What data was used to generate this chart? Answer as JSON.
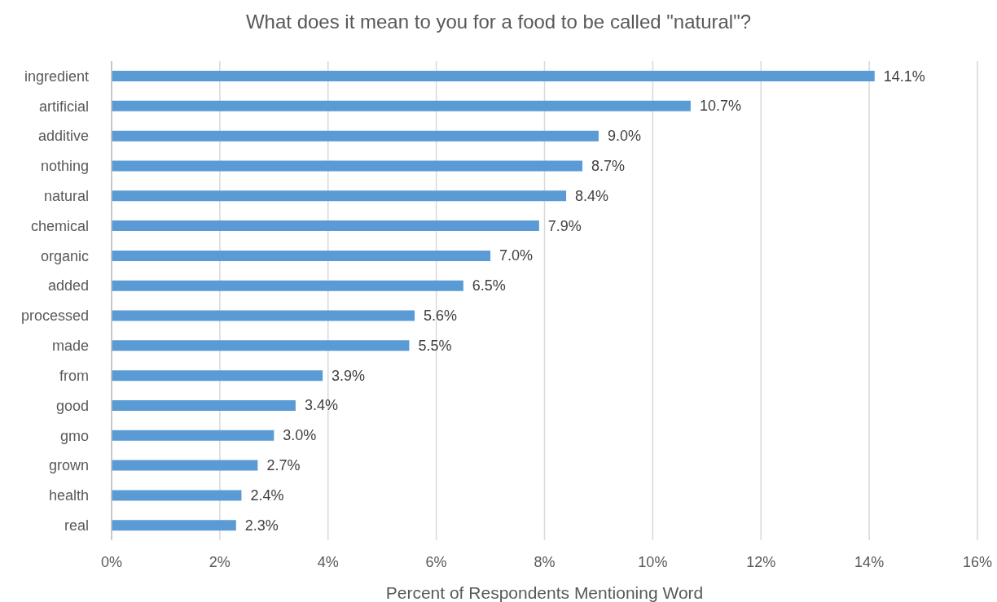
{
  "chart_data": {
    "type": "bar",
    "orientation": "horizontal",
    "title": "What does it mean to you for a food to be called \"natural\"?",
    "xlabel": "Percent of Respondents Mentioning Word",
    "categories": [
      "ingredient",
      "artificial",
      "additive",
      "nothing",
      "natural",
      "chemical",
      "organic",
      "added",
      "processed",
      "made",
      "from",
      "good",
      "gmo",
      "grown",
      "health",
      "real"
    ],
    "values": [
      14.1,
      10.7,
      9.0,
      8.7,
      8.4,
      7.9,
      7.0,
      6.5,
      5.6,
      5.5,
      3.9,
      3.4,
      3.0,
      2.7,
      2.4,
      2.3
    ],
    "value_labels": [
      "14.1%",
      "10.7%",
      "9.0%",
      "8.7%",
      "8.4%",
      "7.9%",
      "7.0%",
      "6.5%",
      "5.6%",
      "5.5%",
      "3.9%",
      "3.4%",
      "3.0%",
      "2.7%",
      "2.4%",
      "2.3%"
    ],
    "color": "#5b9bd5",
    "xlim": [
      0,
      16
    ],
    "xticks": [
      {
        "value": 0,
        "label": "0%"
      },
      {
        "value": 2,
        "label": "2%"
      },
      {
        "value": 4,
        "label": "4%"
      },
      {
        "value": 6,
        "label": "6%"
      },
      {
        "value": 8,
        "label": "8%"
      },
      {
        "value": 10,
        "label": "10%"
      },
      {
        "value": 12,
        "label": "12%"
      },
      {
        "value": 14,
        "label": "14%"
      },
      {
        "value": 16,
        "label": "16%"
      }
    ],
    "grid": "x"
  }
}
